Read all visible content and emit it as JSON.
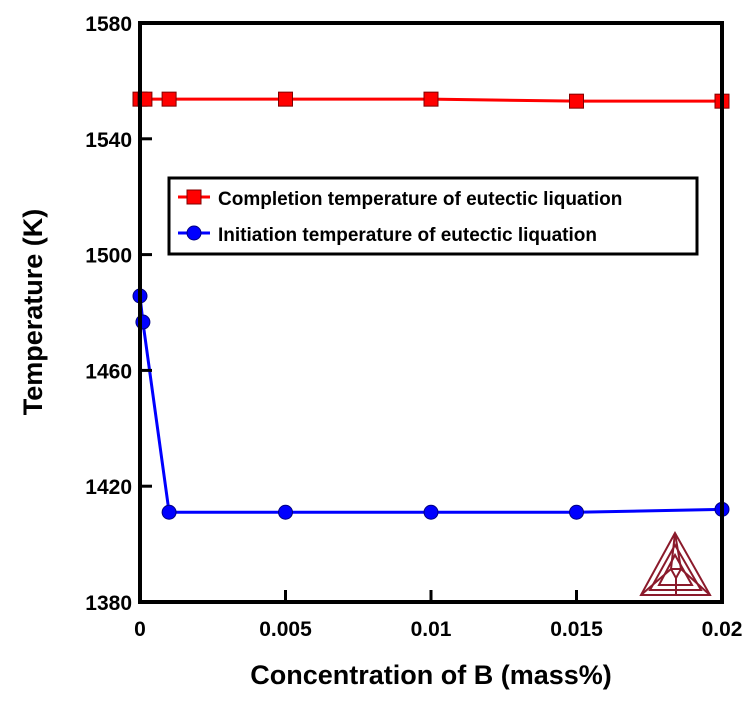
{
  "chart_data": {
    "type": "line",
    "title": "",
    "xlabel": "Concentration of B (mass%)",
    "ylabel": "Temperature (K)",
    "xlim": [
      0,
      0.02
    ],
    "ylim": [
      1380,
      1580
    ],
    "xticks": [
      0,
      0.005,
      0.01,
      0.015,
      0.02
    ],
    "xtick_labels": [
      "0",
      "0.005",
      "0.01",
      "0.015",
      "0.02"
    ],
    "yticks": [
      1380,
      1420,
      1460,
      1500,
      1540,
      1580
    ],
    "ytick_labels": [
      "1380",
      "1420",
      "1460",
      "1500",
      "1540",
      "1580"
    ],
    "grid": false,
    "legend_position": "center-right",
    "series": [
      {
        "name": "Completion temperature of eutectic liquation",
        "color": "#ff0000",
        "marker": "square",
        "x": [
          0,
          0.0001,
          0.001,
          0.005,
          0.01,
          0.015,
          0.02
        ],
        "y": [
          1553.7,
          1553.7,
          1553.7,
          1553.7,
          1553.7,
          1553.0,
          1553.0
        ]
      },
      {
        "name": "Initiation temperature of eutectic liquation",
        "color": "#0000ff",
        "marker": "circle",
        "x": [
          0,
          0.0001,
          0.001,
          0.005,
          0.01,
          0.015,
          0.02
        ],
        "y": [
          1485.7,
          1476.7,
          1411,
          1411,
          1411,
          1411,
          1412
        ]
      }
    ],
    "logo_color": "#8b1a2b"
  }
}
